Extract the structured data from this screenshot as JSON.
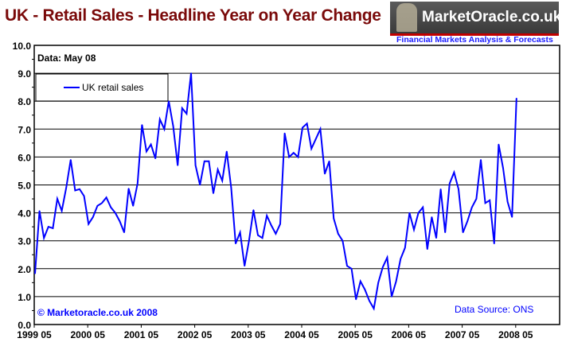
{
  "header": {
    "title": "UK - Retail Sales - Headline Year on Year Change"
  },
  "logo": {
    "text": "MarketOracle.co.uk",
    "tagline": "Financial Markets Analysis & Forecasts"
  },
  "annotations": {
    "data_note": "Data: May 08",
    "copyright": "© Marketoracle.co.uk 2008",
    "source": "Data Source: ONS"
  },
  "colors": {
    "series": "#0000ff",
    "title": "#7a0a0a",
    "grid": "#000000"
  },
  "chart_data": {
    "type": "line",
    "title": "UK - Retail Sales - Headline Year on Year Change",
    "xlabel": "",
    "ylabel": "",
    "ylim": [
      0,
      10
    ],
    "grid": true,
    "legend": "top-left",
    "y_ticks": [
      "0.0",
      "1.0",
      "2.0",
      "3.0",
      "4.0",
      "5.0",
      "6.0",
      "7.0",
      "8.0",
      "9.0",
      "10.0"
    ],
    "x_ticks": [
      "1999 05",
      "2000 05",
      "2001 05",
      "2002 05",
      "2003 05",
      "2004 05",
      "2005 05",
      "2006 05",
      "2007 05",
      "2008 05"
    ],
    "x_start": "1999 05",
    "x_frequency": "monthly",
    "series": [
      {
        "name": "UK retail sales",
        "values": [
          1.83,
          4.07,
          3.1,
          3.5,
          3.45,
          4.5,
          4.07,
          4.9,
          5.9,
          4.8,
          4.85,
          4.6,
          3.6,
          3.85,
          4.25,
          4.35,
          4.55,
          4.2,
          4.0,
          3.7,
          3.3,
          4.87,
          4.25,
          5.05,
          7.15,
          6.2,
          6.45,
          5.95,
          7.35,
          7.0,
          8.0,
          7.1,
          5.7,
          7.75,
          7.55,
          9.0,
          5.7,
          5.0,
          5.85,
          5.85,
          4.7,
          5.55,
          5.15,
          6.2,
          4.9,
          2.9,
          3.3,
          2.1,
          3.0,
          4.1,
          3.2,
          3.1,
          3.9,
          3.55,
          3.25,
          3.6,
          6.85,
          6.0,
          6.15,
          6.0,
          7.05,
          7.2,
          6.3,
          6.65,
          7.0,
          5.4,
          5.85,
          3.8,
          3.25,
          3.0,
          2.1,
          2.0,
          0.9,
          1.55,
          1.25,
          0.85,
          0.57,
          1.5,
          2.05,
          2.4,
          1.0,
          1.55,
          2.35,
          2.75,
          4.0,
          3.4,
          4.0,
          4.2,
          2.7,
          3.85,
          3.1,
          4.85,
          3.3,
          5.05,
          5.45,
          4.85,
          3.3,
          3.7,
          4.2,
          4.5,
          5.9,
          4.35,
          4.45,
          2.9,
          6.45,
          5.6,
          4.4,
          3.85,
          8.1
        ]
      }
    ]
  }
}
